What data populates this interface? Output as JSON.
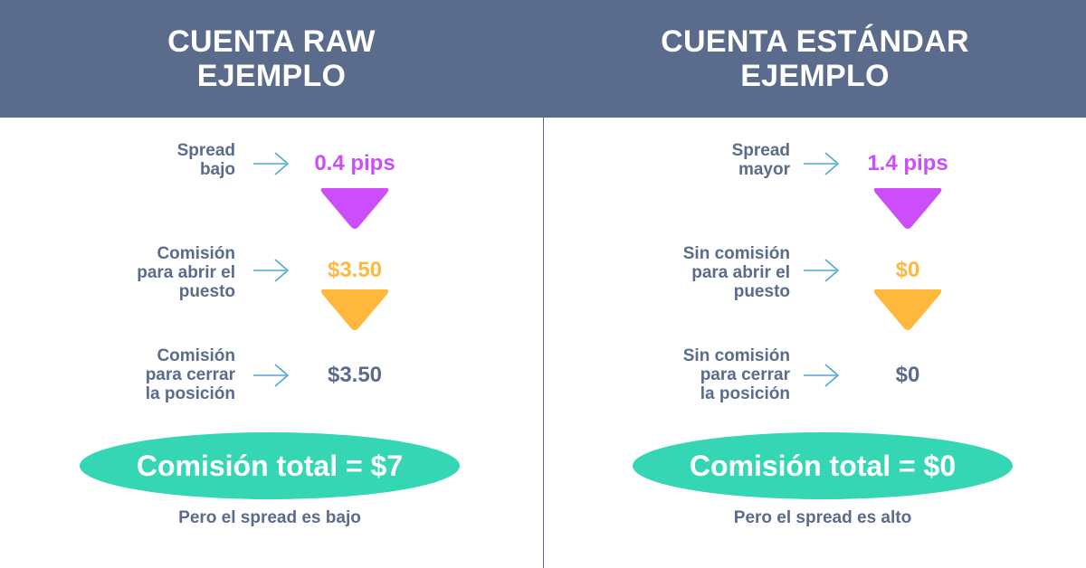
{
  "left": {
    "title": "CUENTA RAW\nEJEMPLO",
    "rows": [
      {
        "label": "Spread\nbajo",
        "value": "0.4 pips"
      },
      {
        "label": "Comisión\npara abrir el\npuesto",
        "value": "$3.50"
      },
      {
        "label": "Comisión\npara cerrar\nla posición",
        "value": "$3.50"
      }
    ],
    "total": "Comisión total = $7",
    "footnote": "Pero el spread es bajo"
  },
  "right": {
    "title": "CUENTA ESTÁNDAR\nEJEMPLO",
    "rows": [
      {
        "label": "Spread\nmayor",
        "value": "1.4 pips"
      },
      {
        "label": "Sin comisión\npara abrir el\npuesto",
        "value": "$0"
      },
      {
        "label": "Sin comisión\npara cerrar\nla posición",
        "value": "$0"
      }
    ],
    "total": "Comisión total = $0",
    "footnote": "Pero el spread es alto"
  },
  "colors": {
    "header": "#5a6b8c",
    "purple": "#cc4dfa",
    "orange": "#ffb83d",
    "teal": "#35d6b4",
    "arrow": "#4aa8d8",
    "text": "#5a6b8c"
  },
  "icons": {
    "row_arrow": "arrow-right-icon",
    "spread_marker": "triangle-down-icon",
    "commission_marker": "triangle-down-icon"
  }
}
